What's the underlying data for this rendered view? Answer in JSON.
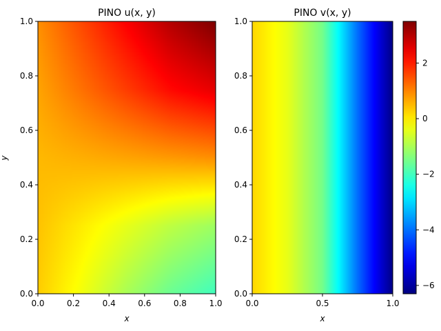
{
  "chart_data": [
    {
      "type": "heatmap",
      "title": "PINO u(x,y)",
      "title_prefix": "PINO",
      "title_math": "u(x, y)",
      "xlabel": "x",
      "ylabel": "y",
      "xlim": [
        0,
        1
      ],
      "ylim": [
        0,
        1
      ],
      "xticks": [
        0.0,
        0.2,
        0.4,
        0.6,
        0.8,
        1.0
      ],
      "xtick_labels": [
        "0.0",
        "0.2",
        "0.4",
        "0.6",
        "0.8",
        "1.0"
      ],
      "yticks": [
        0.0,
        0.2,
        0.4,
        0.6,
        0.8,
        1.0
      ],
      "ytick_labels": [
        "0.0",
        "0.2",
        "0.4",
        "0.6",
        "0.8",
        "1.0"
      ],
      "colormap": "jet",
      "field_description": "values increase toward the top-right (~3.5) and decrease toward the bottom-right (~-2); near 0-0.5 along the left edge",
      "sample_values": {
        "x": [
          0.0,
          0.25,
          0.5,
          0.75,
          1.0
        ],
        "y": [
          0.0,
          0.25,
          0.5,
          0.75,
          1.0
        ],
        "z": [
          [
            0.3,
            -0.3,
            -1.0,
            -1.6,
            -2.0
          ],
          [
            0.4,
            0.0,
            -0.4,
            -0.8,
            -1.1
          ],
          [
            0.5,
            0.6,
            0.7,
            0.8,
            0.9
          ],
          [
            0.7,
            1.2,
            1.7,
            2.2,
            2.5
          ],
          [
            0.9,
            1.6,
            2.3,
            3.0,
            3.5
          ]
        ]
      }
    },
    {
      "type": "heatmap",
      "title": "PINO v(x,y)",
      "title_prefix": "PINO",
      "title_math": "v(x, y)",
      "xlabel": "x",
      "ylabel": "",
      "xlim": [
        0,
        1
      ],
      "ylim": [
        0,
        1
      ],
      "xticks": [
        0.0,
        0.5,
        1.0
      ],
      "xtick_labels": [
        "0.0",
        "0.5",
        "1.0"
      ],
      "yticks": [
        0.0,
        0.2,
        0.4,
        0.6,
        0.8,
        1.0
      ],
      "ytick_labels": [
        "0.0",
        "0.2",
        "0.4",
        "0.6",
        "0.8",
        "1.0"
      ],
      "colormap": "jet",
      "field_description": "varies mainly with x: ~0 at x=0 decreasing to ~-6.2 at x=1, nearly constant in y",
      "sample_values": {
        "x": [
          0.0,
          0.25,
          0.5,
          0.6,
          0.75,
          1.0
        ],
        "z_by_x": [
          0.2,
          -0.4,
          -1.5,
          -2.5,
          -4.0,
          -6.2
        ]
      }
    }
  ],
  "colorbar": {
    "colormap": "jet",
    "range": [
      -6.3,
      3.5
    ],
    "ticks": [
      2,
      0,
      -2,
      -4,
      -6
    ],
    "tick_labels": [
      "2",
      "0",
      "−2",
      "−4",
      "−6"
    ]
  }
}
